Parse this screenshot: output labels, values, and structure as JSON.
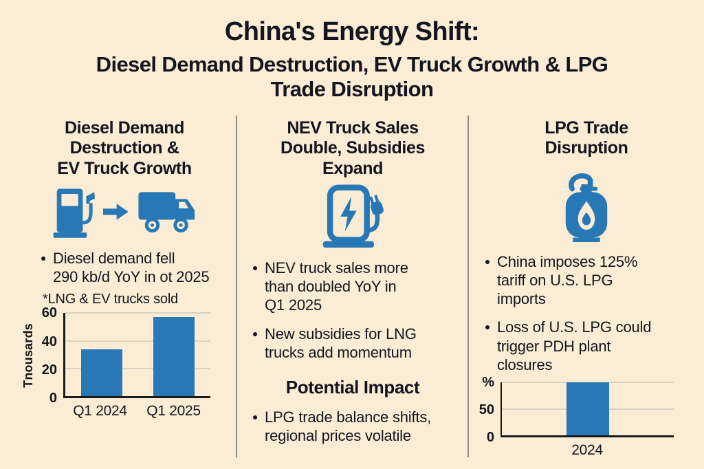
{
  "colors": {
    "background": "#FAECD5",
    "text": "#15151E",
    "blue": "#2878B6",
    "divider": "#8C8C84",
    "axis": "#1A1A1A",
    "gridline": "#DAD2C2"
  },
  "header": {
    "title": "China's Energy Shift:",
    "subtitle_line1": "Diesel Demand Destruction, EV Truck Growth & LPG",
    "subtitle_line2": "Trade Disruption"
  },
  "columns": {
    "left": {
      "heading": "Diesel Demand\nDestruction &\nEV Truck Growth",
      "icons": [
        "fuel-pump-icon",
        "arrow-right-icon",
        "truck-icon"
      ],
      "bullets": [
        "Diesel demand fell\n290 kb/d YoY in ot 2025"
      ]
    },
    "middle": {
      "heading": "NEV Truck Sales\nDouble, Subsidies\nExpand",
      "icons": [
        "ev-charger-icon"
      ],
      "bullets": [
        "NEV truck sales more\nthan doubled YoY in\nQ1 2025",
        "New subsidies for LNG\ntrucks add momentum"
      ],
      "impact_heading": "Potential Impact",
      "impact_bullets": [
        "LPG trade balance shifts,\nregional prices volatile"
      ]
    },
    "right": {
      "heading": "LPG Trade\nDisruption",
      "icons": [
        "lpg-cylinder-icon"
      ],
      "bullets": [
        "China imposes 125%\ntariff on U.S. LPG\nimports",
        "Loss of U.S. LPG could\ntrigger PDH plant\nclosures"
      ]
    }
  },
  "chart_data": [
    {
      "type": "bar",
      "title": "",
      "footnote": "*LNG & EV trucks sold",
      "categories": [
        "Q1 2024",
        "Q1 2025"
      ],
      "values": [
        34,
        57
      ],
      "xlabel": "",
      "ylabel": "Tnousards",
      "ylabel_position": "side",
      "ylim": [
        0,
        60
      ],
      "yticks": [
        0,
        20,
        40,
        60
      ],
      "gridlines": [
        20,
        40,
        60
      ],
      "legend": false,
      "bar_width_frac": 0.57,
      "bar_color": "#2878B6"
    },
    {
      "type": "bar",
      "title": "",
      "categories": [
        "2024"
      ],
      "values": [
        100
      ],
      "xlabel": "",
      "ylabel": "%",
      "ylabel_position": "top",
      "ylim": [
        0,
        100
      ],
      "yticks": [
        0,
        50
      ],
      "gridlines": [
        50,
        100
      ],
      "legend": false,
      "bar_width_frac": 0.25,
      "bar_color": "#2878B6"
    }
  ]
}
